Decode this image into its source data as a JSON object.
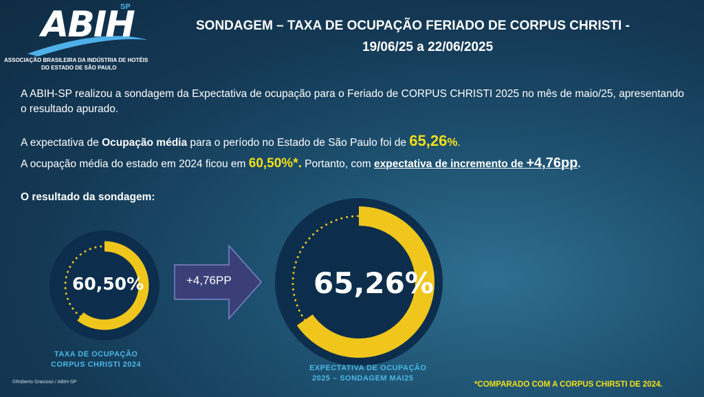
{
  "logo": {
    "name": "ABIH",
    "sp": "SP",
    "sub_line1": "ASSOCIAÇÃO BRASILEIRA DA INDÚSTRIA DE HOTÉIS",
    "sub_line2": "DO ESTADO DE SÃO PAULO"
  },
  "header": {
    "title_line1": "SONDAGEM – TAXA DE OCUPAÇÃO FERIADO DE CORPUS CHRISTI   -",
    "title_line2": "19/06/25 a 22/06/2025"
  },
  "body": {
    "intro": "A ABIH-SP realizou a sondagem da Expectativa de ocupação para o Feriado de CORPUS CHRISTI 2025 no mês de maio/25, apresentando o resultado apurado.",
    "exp_prefix": "A expectativa de ",
    "exp_bold": "Ocupação média",
    "exp_mid": " para o período no Estado de São Paulo foi de ",
    "exp_value": "65,26",
    "exp_pct": "%",
    "exp_end": ".",
    "occ_prefix": "A ocupação média do estado em 2024 ficou em ",
    "occ_value": "60,50%*.",
    "occ_mid": " Portanto, com ",
    "occ_underline": "expectativa de incremento de ",
    "occ_increment": "+4,76pp",
    "occ_end": ".",
    "result_title": "O resultado da sondagem:"
  },
  "gauges": {
    "left_value": "60,50%",
    "left_fill": 0.605,
    "left_caption_line1": "TAXA DE OCUPAÇÃO",
    "left_caption_line2": "CORPUS CHRISTI 2024",
    "arrow_label": "+4,76PP",
    "right_value": "65,26%",
    "right_fill": 0.6526,
    "right_caption_line1": "EXPECTATIVA DE OCUPAÇÃO",
    "right_caption_line2": "2025 – SONDAGEM MAI25"
  },
  "footer": {
    "credit": "©Roberto Gracioso / ABIH-SP",
    "note": "*COMPARADO COM A CORPUS CHIRSTI DE 2024."
  },
  "colors": {
    "accent_yellow": "#f2e01a",
    "ring_yellow": "#f0c61c",
    "caption_blue": "#4ab8e6",
    "ring_dark": "#0c2e4c",
    "arrow_fill": "#3a3f78"
  }
}
